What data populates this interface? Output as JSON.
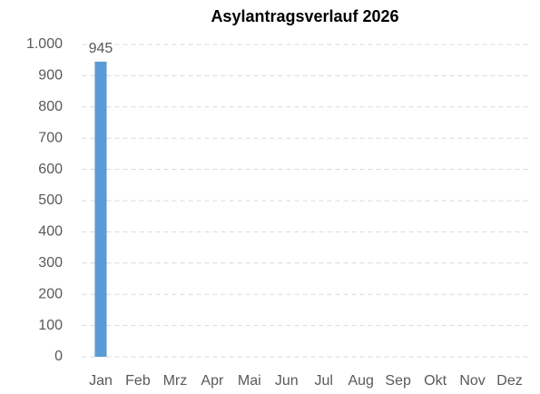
{
  "chart_data": {
    "type": "bar",
    "title": "Asylantragsverlauf 2026",
    "categories": [
      "Jan",
      "Feb",
      "Mrz",
      "Apr",
      "Mai",
      "Jun",
      "Jul",
      "Aug",
      "Sep",
      "Okt",
      "Nov",
      "Dez"
    ],
    "values": [
      945,
      null,
      null,
      null,
      null,
      null,
      null,
      null,
      null,
      null,
      null,
      null
    ],
    "color": "#5b9bd5",
    "ylim": [
      0,
      1000
    ],
    "yticks": [
      0,
      100,
      200,
      300,
      400,
      500,
      600,
      700,
      800,
      900,
      {
        "value": 1000,
        "label": "1.000"
      }
    ],
    "grid": true
  }
}
